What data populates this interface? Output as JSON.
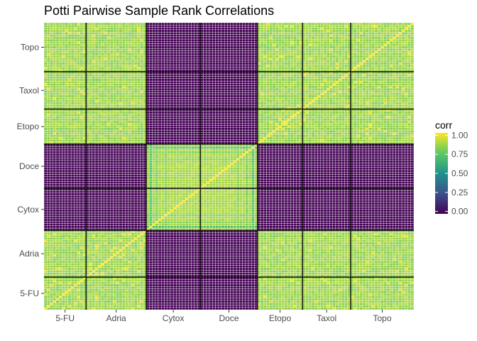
{
  "chart_data": {
    "type": "heatmap",
    "title": "Potti Pairwise Sample Rank Correlations",
    "xlabel": "",
    "ylabel": "",
    "groups": [
      {
        "name": "5-FU",
        "n": 14
      },
      {
        "name": "Adria",
        "n": 20
      },
      {
        "name": "Cytox",
        "n": 18
      },
      {
        "name": "Doce",
        "n": 19
      },
      {
        "name": "Etopo",
        "n": 15
      },
      {
        "name": "Taxol",
        "n": 16
      },
      {
        "name": "Topo",
        "n": 21
      }
    ],
    "x_categories": [
      "5-FU",
      "Adria",
      "Cytox",
      "Doce",
      "Etopo",
      "Taxol",
      "Topo"
    ],
    "y_categories": [
      "5-FU",
      "Adria",
      "Cytox",
      "Doce",
      "Etopo",
      "Taxol",
      "Topo"
    ],
    "block_structure": {
      "cluster_A": [
        "5-FU",
        "Adria",
        "Etopo",
        "Taxol",
        "Topo"
      ],
      "cluster_B": [
        "Cytox",
        "Doce"
      ],
      "within_cluster_corr_approx": 0.85,
      "between_cluster_corr_approx": 0.0,
      "diagonal_corr": 1.0
    },
    "legend": {
      "title": "corr",
      "breaks": [
        "0.00",
        "0.25",
        "0.50",
        "0.75",
        "1.00"
      ],
      "range": [
        0,
        1
      ],
      "palette": "viridis",
      "position": "right"
    },
    "colors": {
      "panel_background": "#ebebeb",
      "cell_border": "#ffffff",
      "group_divider": "#1a1a1a"
    },
    "grid": false
  }
}
